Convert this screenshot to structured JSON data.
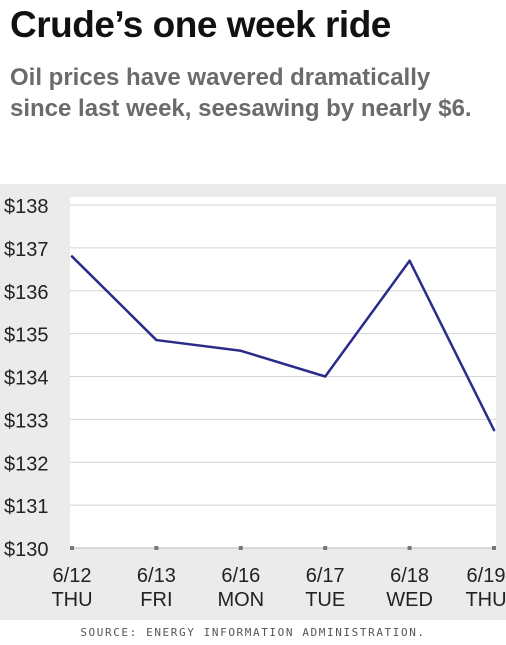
{
  "header": {
    "title": "Crude’s one week ride",
    "subtitle": "Oil prices have wavered dramatically since last week, seesawing by nearly $6."
  },
  "source": "SOURCE: ENERGY INFORMATION ADMINISTRATION.",
  "colors": {
    "line": "#2b2b8a",
    "plot_background": "#ffffff",
    "chart_background": "#ebebeb",
    "grid": "#d4d4d4",
    "title": "#111111",
    "subtitle": "#6b6b6b"
  },
  "chart_data": {
    "type": "line",
    "title": "Crude’s one week ride",
    "subtitle": "Oil prices have wavered dramatically since last week, seesawing by nearly $6.",
    "categories": [
      "6/12",
      "6/13",
      "6/16",
      "6/17",
      "6/18",
      "6/19"
    ],
    "category_days": [
      "THU",
      "FRI",
      "MON",
      "TUE",
      "WED",
      "THU"
    ],
    "series": [
      {
        "values": [
          136.8,
          134.85,
          134.6,
          134.0,
          136.7,
          132.75
        ]
      }
    ],
    "ylim": [
      130,
      138
    ],
    "yticks": [
      130,
      131,
      132,
      133,
      134,
      135,
      136,
      137,
      138
    ],
    "ytick_labels": [
      "$130",
      "$131",
      "$132",
      "$133",
      "$134",
      "$135",
      "$136",
      "$137",
      "$138"
    ],
    "xlabel": "",
    "ylabel": "",
    "grid": true
  }
}
